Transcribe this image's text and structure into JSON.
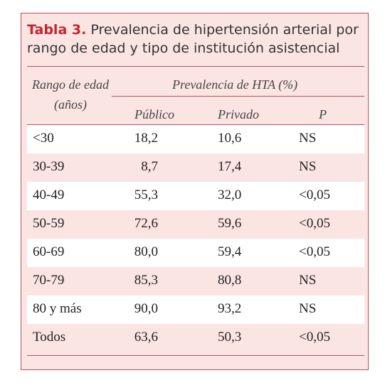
{
  "table": {
    "label": "Tabla 3.",
    "title": "Prevalencia de hipertensión arterial por rango de edad y tipo de institución asistencial",
    "header": {
      "age_line1": "Rango de edad",
      "age_line2": "(años)",
      "group": "Prevalencia de HTA (%)",
      "col_public": "Público",
      "col_private": "Privado",
      "col_p": "P"
    },
    "rows": [
      {
        "age": "<30",
        "public": "18,2",
        "private": "10,6",
        "p": "NS"
      },
      {
        "age": "30-39",
        "public": "8,7",
        "private": "17,4",
        "p": "NS"
      },
      {
        "age": "40-49",
        "public": "55,3",
        "private": "32,0",
        "p": "<0,05"
      },
      {
        "age": "50-59",
        "public": "72,6",
        "private": "59,6",
        "p": "<0,05"
      },
      {
        "age": "60-69",
        "public": "80,0",
        "private": "59,4",
        "p": "<0,05"
      },
      {
        "age": "70-79",
        "public": "85,3",
        "private": "80,8",
        "p": "NS"
      },
      {
        "age": "80 y más",
        "public": "90,0",
        "private": "93,2",
        "p": "NS"
      },
      {
        "age": "Todos",
        "public": "63,6",
        "private": "50,3",
        "p": "<0,05"
      }
    ],
    "colors": {
      "border": "#b2525b",
      "label": "#c1272d",
      "band": "#fbe5e3"
    }
  }
}
